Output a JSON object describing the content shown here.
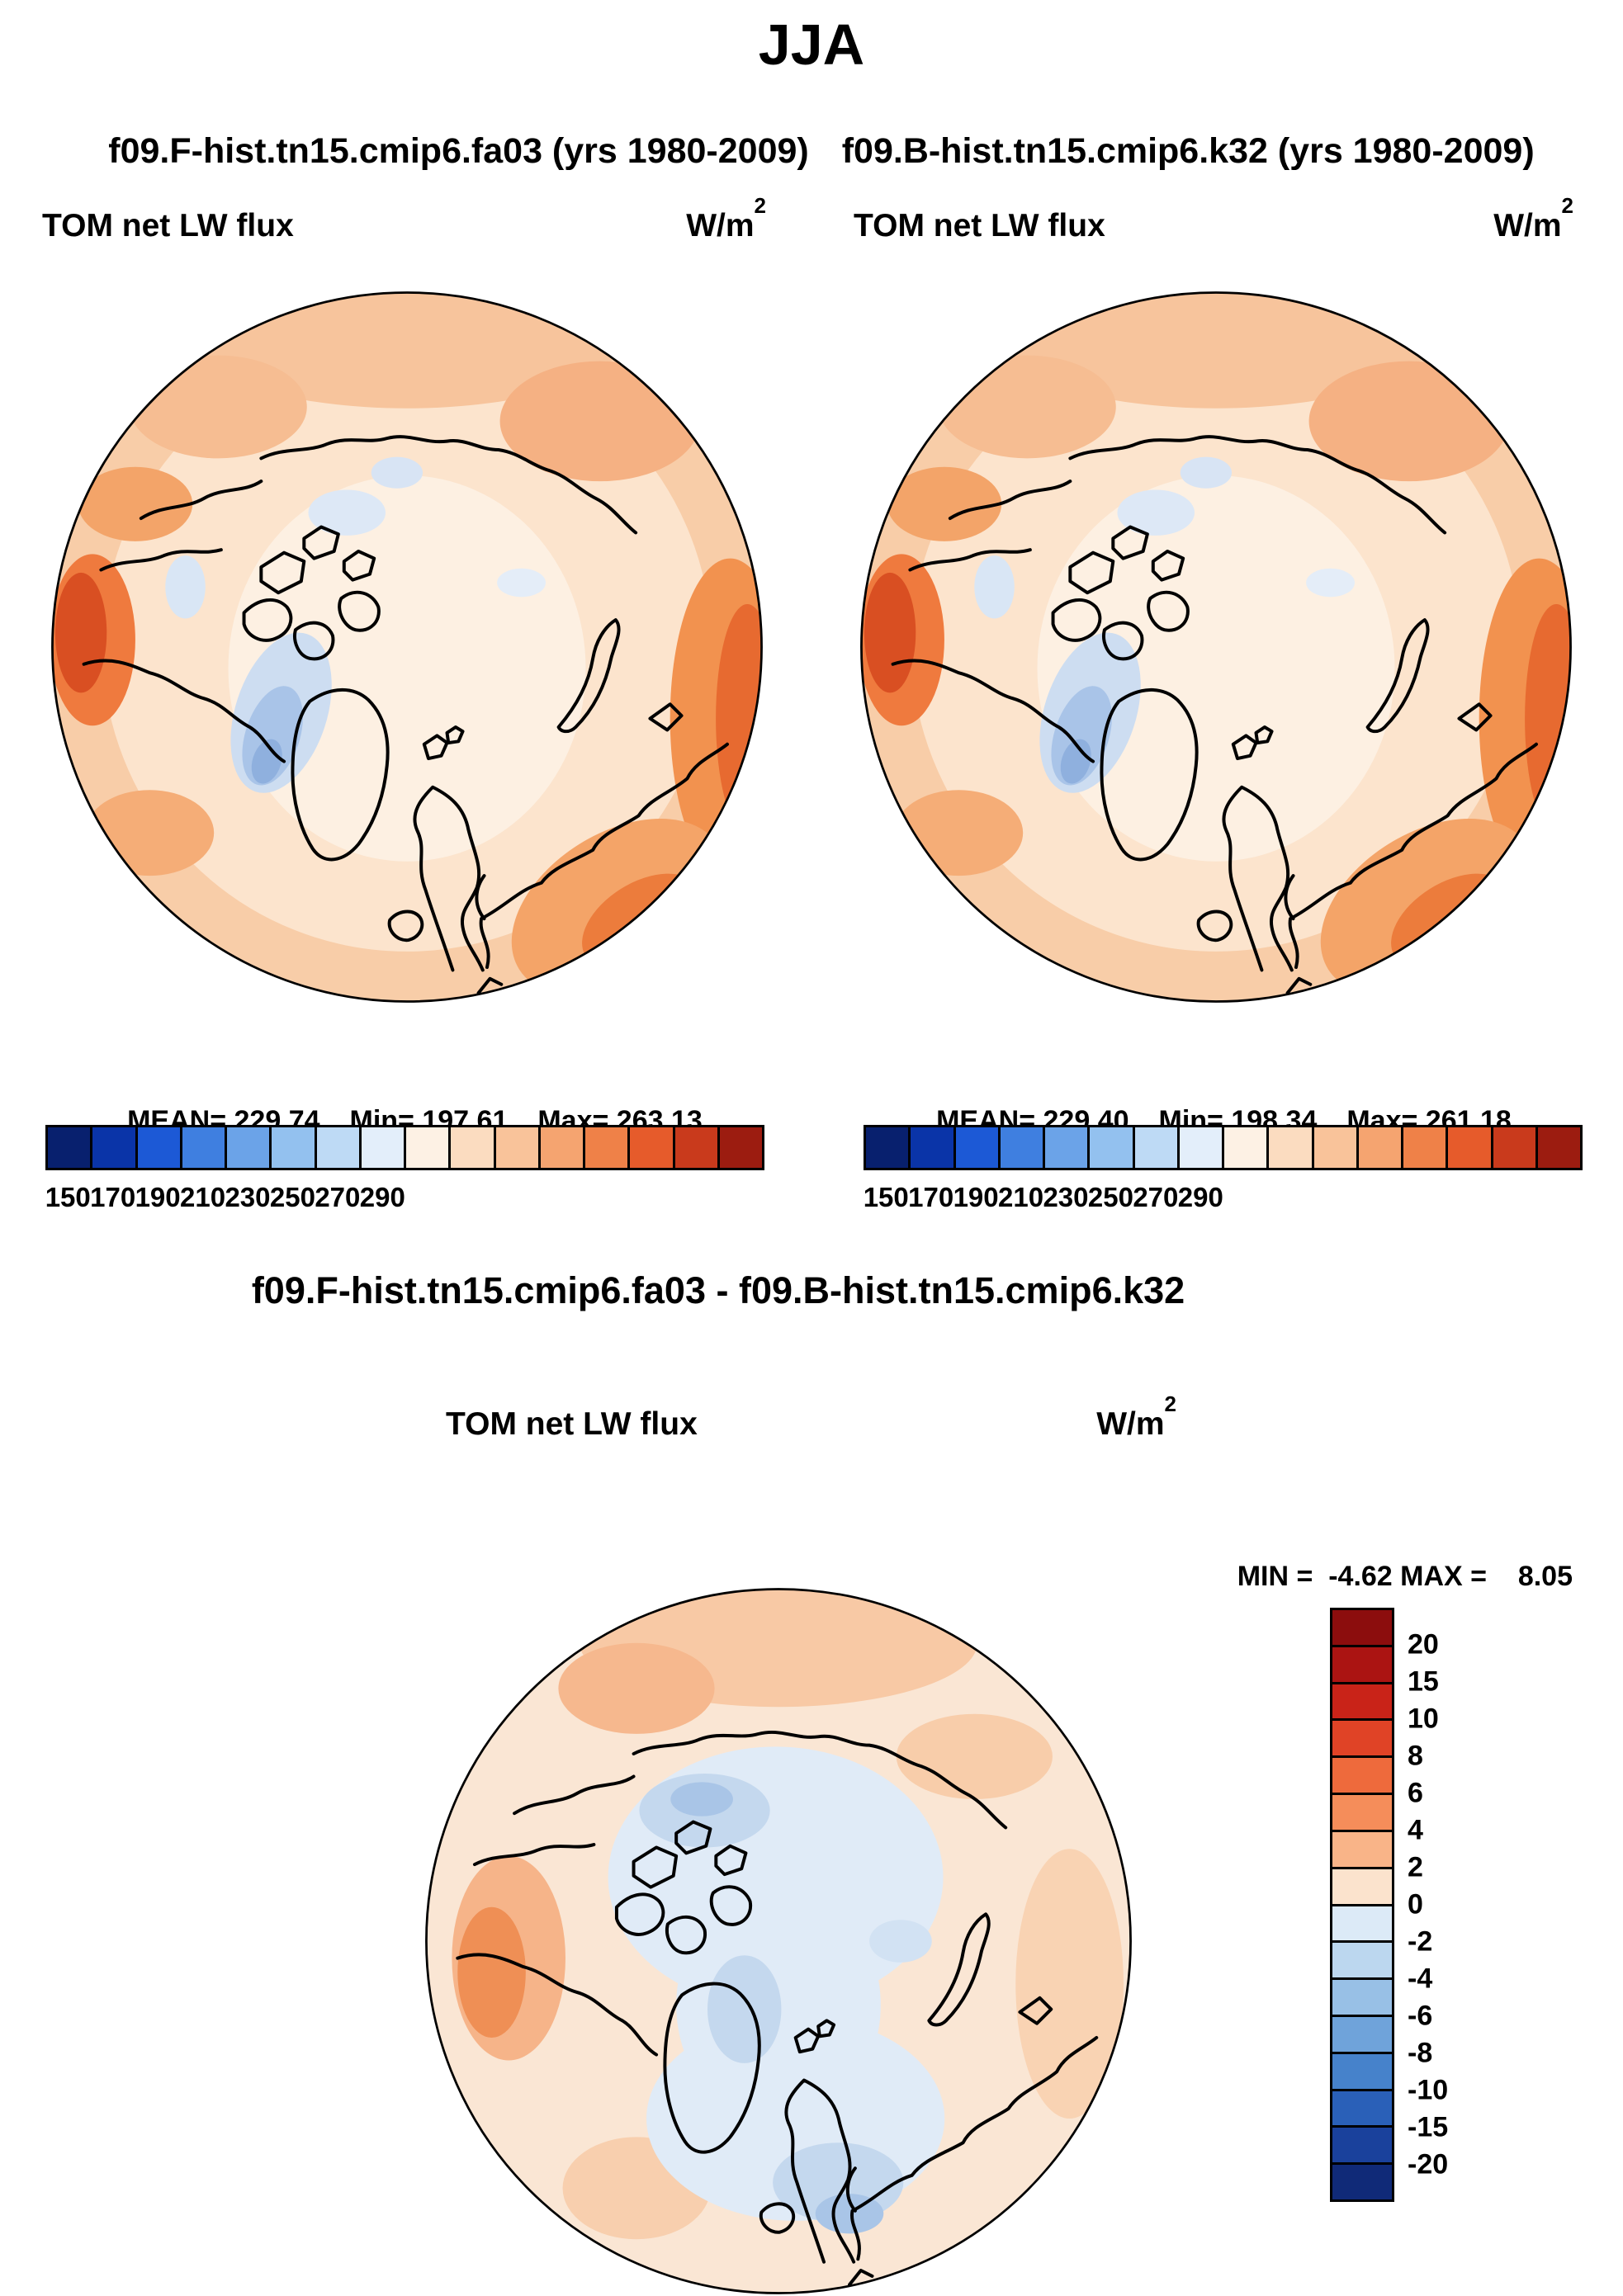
{
  "title": "JJA",
  "subtitle": {
    "left": "f09.F-hist.tn15.cmip6.fa03 (yrs 1980-2009)",
    "right": "f09.B-hist.tn15.cmip6.k32 (yrs 1980-2009)"
  },
  "panels": [
    {
      "id": "left",
      "label": "TOM net LW flux",
      "units": "W/m",
      "units_exp": "2",
      "stats": {
        "mean": "MEAN= 229.74",
        "min": "Min= 197.61",
        "max": "Max= 263.13"
      }
    },
    {
      "id": "right",
      "label": "TOM net LW flux",
      "units": "W/m",
      "units_exp": "2",
      "stats": {
        "mean": "MEAN= 229.40",
        "min": "Min= 198.34",
        "max": "Max= 261.18"
      }
    }
  ],
  "colorbar": {
    "ticks": [
      "150",
      "170",
      "190",
      "210",
      "230",
      "250",
      "270",
      "290"
    ],
    "colors": [
      "#08206e",
      "#0a34a8",
      "#1c59d6",
      "#3f7fe0",
      "#6ba3e8",
      "#93c1ef",
      "#bedaf5",
      "#e3eefa",
      "#fdf1e4",
      "#fbdcc0",
      "#f9c39a",
      "#f5a470",
      "#ef8148",
      "#e65b2b",
      "#c93a1c",
      "#9c1c10"
    ]
  },
  "diff": {
    "title": "f09.F-hist.tn15.cmip6.fa03 - f09.B-hist.tn15.cmip6.k32",
    "label": "TOM net LW flux",
    "units": "W/m",
    "units_exp": "2",
    "minmax": {
      "min": "MIN =  -4.62",
      "max": "MAX =    8.05"
    },
    "colorbar": {
      "labels": [
        "20",
        "15",
        "10",
        "8",
        "6",
        "4",
        "2",
        "0",
        "-2",
        "-4",
        "-6",
        "-8",
        "-10",
        "-15",
        "-20"
      ],
      "colors": [
        "#8c0d0d",
        "#ab1412",
        "#c92318",
        "#e04326",
        "#ee6a3c",
        "#f58d5a",
        "#f9b488",
        "#fbe3cd",
        "#dcEAf7",
        "#bcd7ef",
        "#98c0e6",
        "#6fa3da",
        "#4682cb",
        "#2a60b8",
        "#1a419c",
        "#102a78"
      ]
    }
  },
  "chart_data": [
    {
      "type": "heatmap",
      "title": "TOM net LW flux — f09.F-hist.tn15.cmip6.fa03 (yrs 1980-2009), JJA",
      "projection": "north polar stereographic",
      "units": "W/m^2",
      "mean": 229.74,
      "min": 197.61,
      "max": 263.13,
      "contour_ticks": [
        150,
        170,
        190,
        210,
        230,
        250,
        270,
        290
      ],
      "palette": "blue-white-red",
      "legend_position": "bottom"
    },
    {
      "type": "heatmap",
      "title": "TOM net LW flux — f09.B-hist.tn15.cmip6.k32 (yrs 1980-2009), JJA",
      "projection": "north polar stereographic",
      "units": "W/m^2",
      "mean": 229.4,
      "min": 198.34,
      "max": 261.18,
      "contour_ticks": [
        150,
        170,
        190,
        210,
        230,
        250,
        270,
        290
      ],
      "palette": "blue-white-red",
      "legend_position": "bottom"
    },
    {
      "type": "heatmap",
      "title": "Difference: f09.F-hist.tn15.cmip6.fa03 - f09.B-hist.tn15.cmip6.k32 (TOM net LW flux, JJA)",
      "projection": "north polar stereographic",
      "units": "W/m^2",
      "min": -4.62,
      "max": 8.05,
      "contour_levels": [
        -20,
        -15,
        -10,
        -8,
        -6,
        -4,
        -2,
        0,
        2,
        4,
        6,
        8,
        10,
        15,
        20
      ],
      "palette": "red-white-blue (diverging)",
      "legend_position": "right"
    }
  ]
}
